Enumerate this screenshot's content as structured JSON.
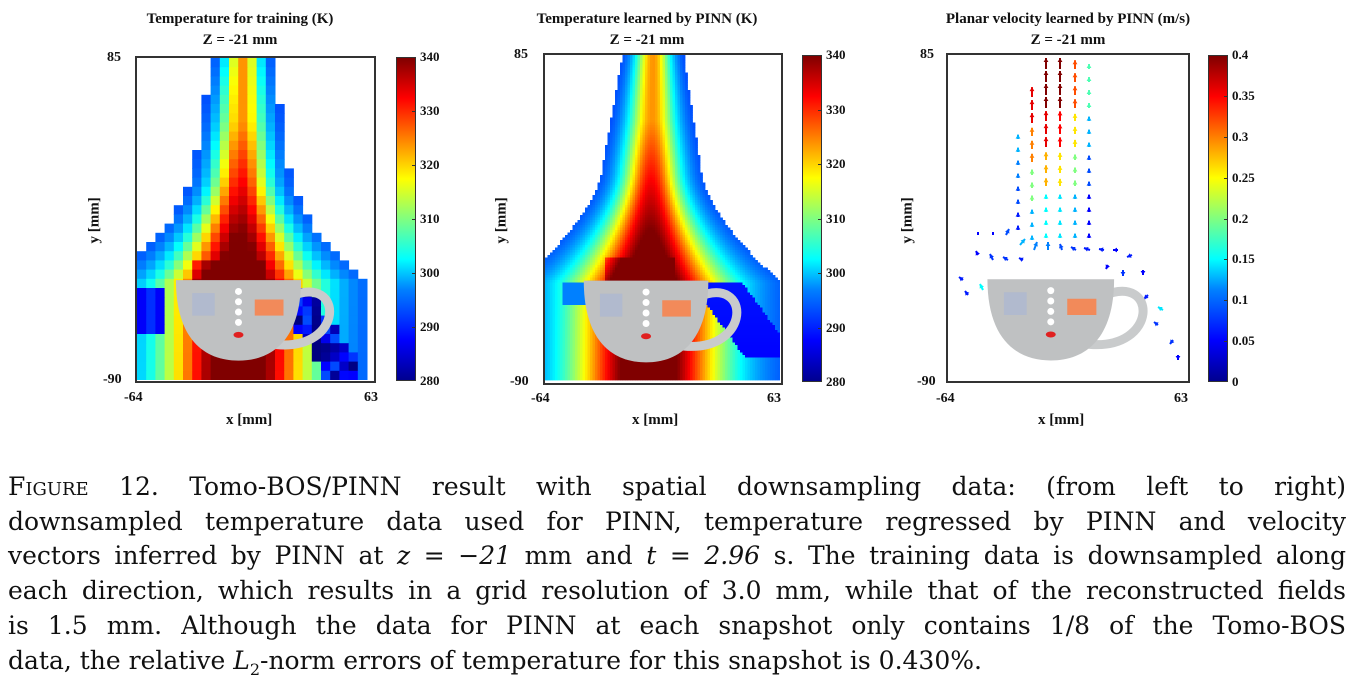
{
  "chart_data": [
    {
      "type": "heatmap",
      "title": "Temperature for training (K)",
      "subtitle": "Z = -21 mm",
      "xlabel": "x [mm]",
      "ylabel": "y [mm]",
      "xlim": [
        -64,
        63
      ],
      "ylim": [
        -90,
        85
      ],
      "x_ticks": [
        "-64",
        "63"
      ],
      "y_ticks": [
        "85",
        "-90"
      ],
      "colorbar": {
        "min": 280,
        "max": 340,
        "ticks": [
          "340",
          "330",
          "320",
          "310",
          "300",
          "290",
          "280"
        ],
        "colormap": "jet"
      },
      "grid_resolution_mm": 3.0
    },
    {
      "type": "heatmap",
      "title": "Temperature learned by PINN (K)",
      "subtitle": "Z = -21 mm",
      "xlabel": "x [mm]",
      "ylabel": "y [mm]",
      "xlim": [
        -64,
        63
      ],
      "ylim": [
        -90,
        85
      ],
      "x_ticks": [
        "-64",
        "63"
      ],
      "y_ticks": [
        "85",
        "-90"
      ],
      "colorbar": {
        "min": 280,
        "max": 340,
        "ticks": [
          "340",
          "330",
          "320",
          "310",
          "300",
          "290",
          "280"
        ],
        "colormap": "jet"
      },
      "grid_resolution_mm": 1.5
    },
    {
      "type": "quiver",
      "title": "Planar velocity learned by PINN (m/s)",
      "subtitle": "Z = -21 mm",
      "xlabel": "x [mm]",
      "ylabel": "y [mm]",
      "xlim": [
        -64,
        63
      ],
      "ylim": [
        -90,
        85
      ],
      "x_ticks": [
        "-64",
        "63"
      ],
      "y_ticks": [
        "85",
        "-90"
      ],
      "colorbar": {
        "min": 0,
        "max": 0.4,
        "ticks": [
          "0.4",
          "0.35",
          "0.3",
          "0.25",
          "0.2",
          "0.15",
          "0.1",
          "0.05",
          "0"
        ],
        "colormap": "jet"
      }
    }
  ],
  "caption": {
    "label": "Figure 12.",
    "lines": [
      "Tomo-BOS/PINN result with spatial downsampling data: (from left to right)",
      "downsampled temperature data used for PINN, temperature regressed by PINN and velocity",
      "vectors inferred by PINN at",
      "mm and",
      "s. The training data is downsampled along",
      "each direction, which results in a grid resolution of 3.0 mm, while that of the reconstructed fields",
      "is 1.5 mm. Although the data for PINN at each snapshot only contains 1/8 of the Tomo-BOS",
      "data, the relative",
      "-norm errors of temperature for this snapshot is 0.430%."
    ],
    "math_z": "z = −21",
    "math_t": "t = 2.96",
    "math_L": "L",
    "math_L_sub": "2"
  }
}
